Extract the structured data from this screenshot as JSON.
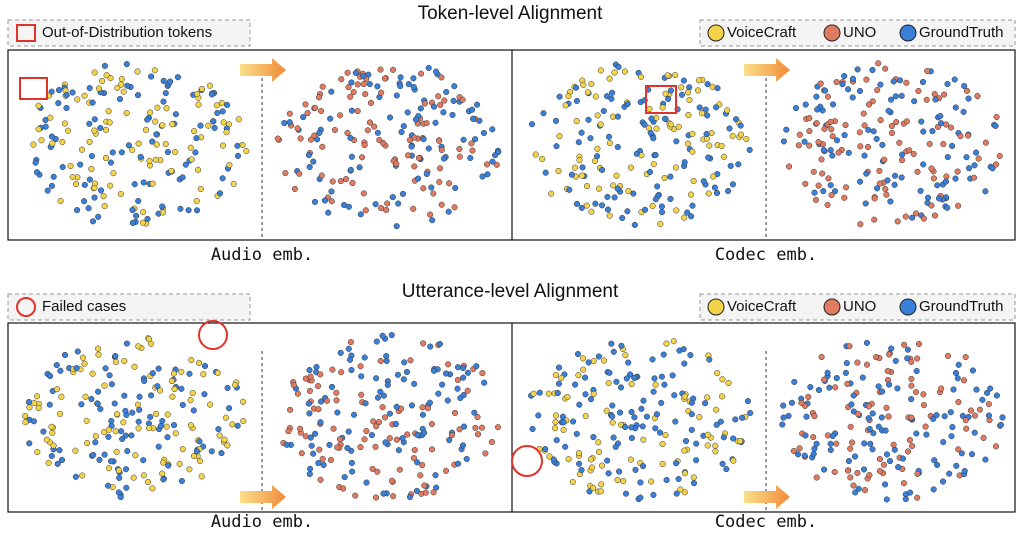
{
  "sections": [
    {
      "title": "Token-level Alignment",
      "note": "Out-of-Distribution tokens",
      "legend": [
        "VoiceCraft",
        "UNO",
        "GroundTruth"
      ],
      "panels": [
        "Audio emb.",
        "Codec emb."
      ]
    },
    {
      "title": "Utterance-level Alignment",
      "note": "Failed cases",
      "legend": [
        "VoiceCraft",
        "UNO",
        "GroundTruth"
      ],
      "panels": [
        "Audio emb.",
        "Codec emb."
      ]
    }
  ]
}
